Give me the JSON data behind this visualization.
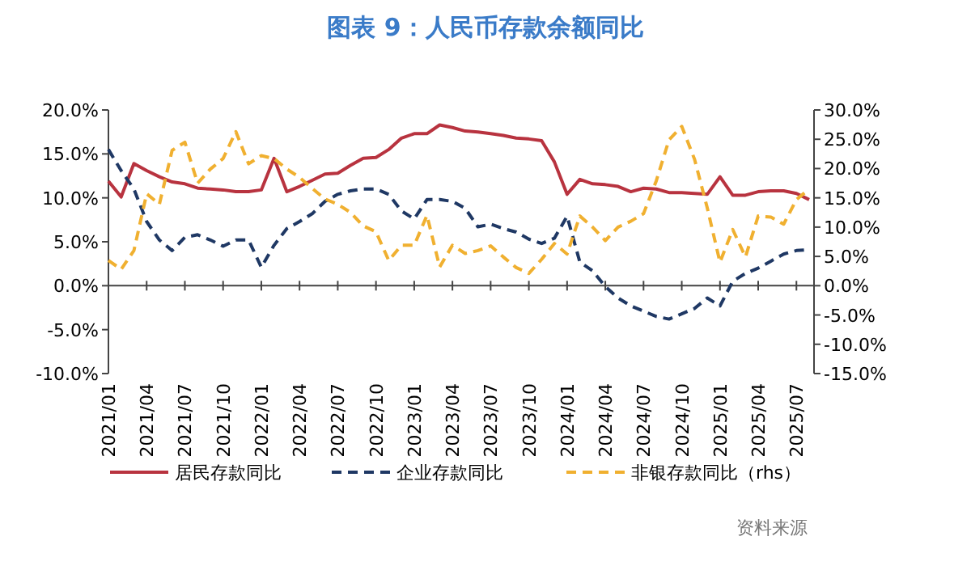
{
  "chart_data": {
    "type": "line",
    "title": "图表 9：人民币存款余额同比",
    "categories": [
      "2021/01",
      null,
      null,
      "2021/04",
      null,
      null,
      "2021/07",
      null,
      null,
      "2021/10",
      null,
      null,
      "2022/01",
      null,
      null,
      "2022/04",
      null,
      null,
      "2022/07",
      null,
      null,
      "2022/10",
      null,
      null,
      "2023/01",
      null,
      null,
      "2023/04",
      null,
      null,
      "2023/07",
      null,
      null,
      "2023/10",
      null,
      null,
      "2024/01",
      null,
      null,
      "2024/04",
      null,
      null,
      "2024/07",
      null,
      null,
      "2024/10",
      null,
      null,
      "2025/01",
      null,
      null,
      "2025/04",
      null,
      null,
      "2025/07",
      null
    ],
    "series": [
      {
        "name": "居民存款同比",
        "color": "#b8333f",
        "line_style": "solid",
        "values": [
          11.9,
          10.1,
          13.9,
          13.1,
          12.4,
          11.8,
          11.6,
          11.1,
          11.0,
          10.9,
          10.7,
          10.7,
          10.9,
          14.5,
          10.7,
          11.3,
          12.0,
          12.7,
          12.8,
          13.7,
          14.5,
          14.6,
          15.5,
          16.8,
          17.3,
          17.3,
          18.3,
          18.0,
          17.6,
          17.5,
          17.3,
          17.1,
          16.8,
          16.7,
          16.5,
          14.1,
          10.4,
          12.1,
          11.6,
          11.5,
          11.3,
          10.7,
          11.1,
          11.0,
          10.6,
          10.6,
          10.5,
          10.4,
          12.4,
          10.3,
          10.3,
          10.7,
          10.8,
          10.8,
          10.5,
          9.8
        ]
      },
      {
        "name": "企业存款同比",
        "color": "#1f3864",
        "line_style": "dashed",
        "values": [
          15.5,
          13.1,
          11.0,
          7.3,
          5.2,
          4.0,
          5.5,
          5.8,
          5.2,
          4.5,
          5.2,
          5.2,
          2.1,
          4.6,
          6.5,
          7.3,
          8.2,
          9.6,
          10.4,
          10.8,
          11.0,
          11.0,
          10.4,
          8.5,
          7.6,
          9.8,
          9.8,
          9.6,
          8.8,
          6.7,
          7.0,
          6.5,
          6.1,
          5.3,
          4.8,
          5.4,
          7.9,
          2.7,
          1.7,
          -0.1,
          -1.4,
          -2.3,
          -2.9,
          -3.5,
          -3.8,
          -3.2,
          -2.6,
          -1.4,
          -2.3,
          0.5,
          1.4,
          2.0,
          2.8,
          3.6,
          4.0,
          4.1
        ]
      },
      {
        "name": "非银存款同比（rhs）",
        "color": "#f0b030",
        "line_style": "dashed",
        "axis": "y2",
        "values": [
          4.3,
          2.8,
          6.0,
          15.7,
          13.9,
          23.1,
          24.5,
          17.5,
          19.9,
          21.7,
          26.3,
          20.8,
          22.2,
          21.7,
          19.9,
          18.5,
          16.6,
          14.8,
          13.9,
          12.5,
          10.2,
          9.2,
          4.3,
          6.9,
          6.9,
          12.0,
          3.2,
          6.9,
          5.5,
          6.0,
          6.8,
          4.9,
          3.1,
          2.1,
          4.5,
          7.2,
          5.4,
          11.9,
          10.0,
          7.7,
          10.0,
          11.0,
          12.3,
          17.9,
          24.9,
          27.2,
          21.6,
          13.3,
          4.0,
          9.6,
          4.9,
          11.9,
          11.7,
          10.5,
          14.7,
          16.5
        ]
      }
    ],
    "ylim": [
      -10,
      20
    ],
    "yticks": [
      {
        "value": -10,
        "label": "-10.0%"
      },
      {
        "value": -5,
        "label": "-5.0%"
      },
      {
        "value": 0,
        "label": "0.0%"
      },
      {
        "value": 5,
        "label": "5.0%"
      },
      {
        "value": 10,
        "label": "10.0%"
      },
      {
        "value": 15,
        "label": "15.0%"
      },
      {
        "value": 20,
        "label": "20.0%"
      }
    ],
    "y2lim": [
      -15,
      30
    ],
    "y2ticks": [
      {
        "value": -15,
        "label": "-15.0%"
      },
      {
        "value": -10,
        "label": "-10.0%"
      },
      {
        "value": -5,
        "label": "-5.0%"
      },
      {
        "value": 0,
        "label": "0.0%"
      },
      {
        "value": 5,
        "label": "5.0%"
      },
      {
        "value": 10,
        "label": "10.0%"
      },
      {
        "value": 15,
        "label": "15.0%"
      },
      {
        "value": 20,
        "label": "20.0%"
      },
      {
        "value": 25,
        "label": "25.0%"
      },
      {
        "value": 30,
        "label": "30.0%"
      }
    ],
    "legend": "bottom",
    "annotations": [
      "资料来源"
    ]
  }
}
